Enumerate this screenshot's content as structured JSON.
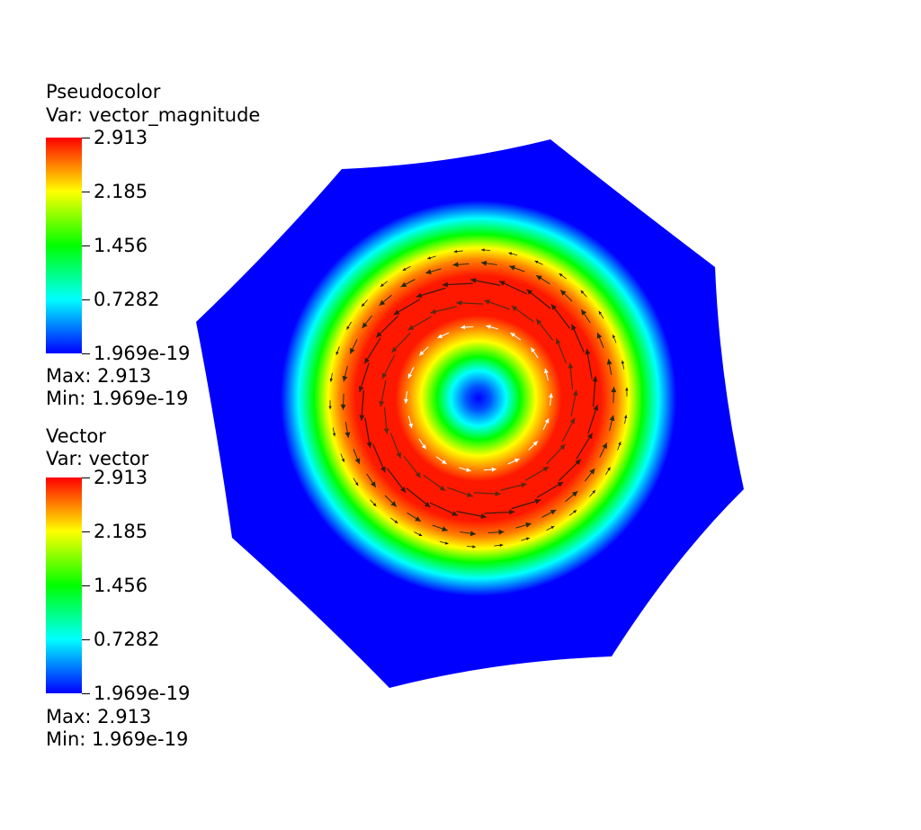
{
  "legends": [
    {
      "plot_type": "Pseudocolor",
      "var_label": "Var: vector_magnitude",
      "ticks": [
        "2.913",
        "2.185",
        "1.456",
        "0.7282",
        "1.969e-19"
      ],
      "max_label": "Max:  2.913",
      "min_label": "Min:  1.969e-19"
    },
    {
      "plot_type": "Vector",
      "var_label": "Var: vector",
      "ticks": [
        "2.913",
        "2.185",
        "1.456",
        "0.7282",
        "1.969e-19"
      ],
      "max_label": "Max:  2.913",
      "min_label": "Min:  1.969e-19"
    }
  ],
  "colormap": [
    "#0000ff",
    "#00ffff",
    "#00ff00",
    "#ffff00",
    "#ff0000"
  ],
  "field": {
    "max": 2.913,
    "min": 1.969e-19,
    "shape": "octagon",
    "pattern": "vortex"
  }
}
